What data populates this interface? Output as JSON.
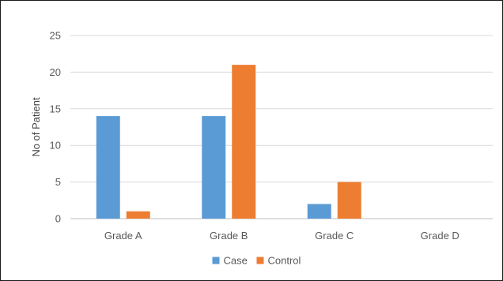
{
  "chart_data": {
    "type": "bar",
    "title": "",
    "xlabel": "",
    "ylabel": "No of Patient",
    "categories": [
      "Grade A",
      "Grade B",
      "Grade C",
      "Grade D"
    ],
    "series": [
      {
        "name": "Case",
        "values": [
          14,
          14,
          2,
          0
        ],
        "color": "#5b9bd5"
      },
      {
        "name": "Control",
        "values": [
          1,
          21,
          5,
          0
        ],
        "color": "#ed7d31"
      }
    ],
    "ylim": [
      0,
      25
    ],
    "yticks": [
      0,
      5,
      10,
      15,
      20,
      25
    ],
    "grid": true,
    "legend": "bottom-center"
  }
}
